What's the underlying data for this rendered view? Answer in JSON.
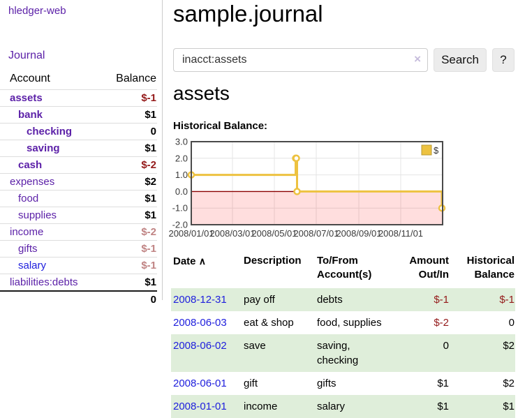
{
  "app": {
    "title": "hledger-web",
    "nav_journal": "Journal"
  },
  "sidebar": {
    "headers": {
      "account": "Account",
      "balance": "Balance"
    },
    "accounts": [
      {
        "name": "assets",
        "balance": "$-1"
      },
      {
        "name": "bank",
        "balance": "$1"
      },
      {
        "name": "checking",
        "balance": "0"
      },
      {
        "name": "saving",
        "balance": "$1"
      },
      {
        "name": "cash",
        "balance": "$-2"
      },
      {
        "name": "expenses",
        "balance": "$2"
      },
      {
        "name": "food",
        "balance": "$1"
      },
      {
        "name": "supplies",
        "balance": "$1"
      },
      {
        "name": "income",
        "balance": "$-2"
      },
      {
        "name": "gifts",
        "balance": "$-1"
      },
      {
        "name": "salary",
        "balance": "$-1"
      },
      {
        "name": "liabilities:debts",
        "balance": "$1"
      }
    ],
    "total": "0"
  },
  "main": {
    "title": "sample.journal",
    "search": {
      "value": "inacct:assets",
      "clear_icon": "×",
      "button": "Search",
      "help": "?"
    },
    "account_heading": "assets",
    "chart_label": "Historical Balance:"
  },
  "register": {
    "headers": {
      "date": "Date",
      "sort_icon": "∧",
      "description": "Description",
      "tofrom_1": "To/From",
      "tofrom_2": "Account(s)",
      "amount_1": "Amount",
      "amount_2": "Out/In",
      "hist_1": "Historical",
      "hist_2": "Balance"
    },
    "rows": [
      {
        "date": "2008-12-31",
        "description": "pay off",
        "tofrom": "debts",
        "amount": "$-1",
        "historical": "$-1"
      },
      {
        "date": "2008-06-03",
        "description": "eat & shop",
        "tofrom": "food, supplies",
        "amount": "$-2",
        "historical": "0"
      },
      {
        "date": "2008-06-02",
        "description": "save",
        "tofrom": "saving, checking",
        "amount": "0",
        "historical": "$2"
      },
      {
        "date": "2008-06-01",
        "description": "gift",
        "tofrom": "gifts",
        "amount": "$1",
        "historical": "$2"
      },
      {
        "date": "2008-01-01",
        "description": "income",
        "tofrom": "salary",
        "amount": "$1",
        "historical": "$1"
      }
    ]
  },
  "chart_data": {
    "type": "line",
    "title": "Historical Balance:",
    "step": true,
    "series": [
      {
        "name": "$",
        "color": "#edc240",
        "points": [
          [
            "2008-01-01",
            1
          ],
          [
            "2008-06-01",
            2
          ],
          [
            "2008-06-02",
            2
          ],
          [
            "2008-06-03",
            0
          ],
          [
            "2008-12-31",
            -1
          ]
        ]
      }
    ],
    "x_range": [
      "2008-01-01",
      "2009-01-01"
    ],
    "ylim": [
      -2,
      3
    ],
    "y_ticks": [
      3,
      2,
      1,
      0,
      -1,
      -2
    ],
    "x_tick_dates": [
      "2008-01-01",
      "2008-03-01",
      "2008-05-01",
      "2008-07-01",
      "2008-09-01",
      "2008-11-01"
    ],
    "x_tick_labels": [
      "2008/01/01",
      "2008/03/01",
      "2008/05/01",
      "2008/07/01",
      "2008/09/01",
      "2008/11/01"
    ],
    "legend_label": "$",
    "legend_position": "top-right",
    "grid": true,
    "negative_region_fill": "rgba(255,0,0,0.13)",
    "zero_line_color": "#8b0000"
  },
  "colors": {
    "link_purple": "#5c21a8",
    "link_blue": "#2020dd",
    "negative": "#941a1a",
    "negative_faded": "#c08484",
    "row_green": "#dfeeda",
    "series_gold": "#edc240"
  }
}
